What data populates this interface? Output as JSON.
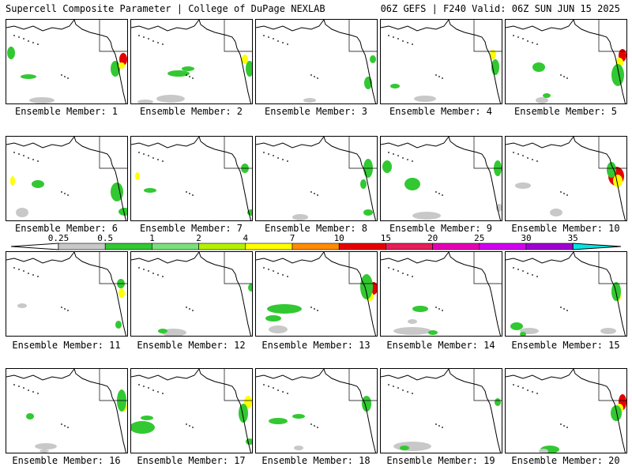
{
  "header": {
    "left_title": "Supercell Composite Parameter | College of DuPage NEXLAB",
    "right_title": "06Z GEFS | F240 Valid: 06Z SUN JUN 15 2025"
  },
  "panels": [
    {
      "label": "Ensemble Member: 1",
      "blobs": [
        [
          "gray",
          45,
          102,
          16,
          4
        ],
        [
          "green",
          28,
          72,
          10,
          3
        ],
        [
          "green",
          138,
          62,
          6,
          10
        ],
        [
          "red",
          148,
          50,
          5,
          8
        ],
        [
          "yellow",
          146,
          58,
          4,
          4
        ],
        [
          "green",
          6,
          42,
          5,
          8
        ]
      ]
    },
    {
      "label": "Ensemble Member: 2",
      "blobs": [
        [
          "green",
          60,
          68,
          14,
          4
        ],
        [
          "green",
          72,
          62,
          8,
          3
        ],
        [
          "gray",
          50,
          100,
          18,
          5
        ],
        [
          "gray",
          18,
          104,
          10,
          3
        ],
        [
          "yellow",
          144,
          50,
          4,
          6
        ],
        [
          "green",
          150,
          62,
          5,
          10
        ]
      ]
    },
    {
      "label": "Ensemble Member: 3",
      "blobs": [
        [
          "gray",
          68,
          102,
          8,
          3
        ],
        [
          "green",
          142,
          80,
          5,
          8
        ],
        [
          "green",
          148,
          50,
          4,
          5
        ]
      ]
    },
    {
      "label": "Ensemble Member: 4",
      "blobs": [
        [
          "gray",
          56,
          100,
          14,
          4
        ],
        [
          "green",
          18,
          84,
          6,
          3
        ],
        [
          "yellow",
          142,
          44,
          4,
          6
        ],
        [
          "green",
          145,
          60,
          5,
          10
        ]
      ]
    },
    {
      "label": "Ensemble Member: 5",
      "blobs": [
        [
          "green",
          42,
          60,
          8,
          6
        ],
        [
          "gray",
          46,
          102,
          8,
          4
        ],
        [
          "green",
          52,
          96,
          5,
          3
        ],
        [
          "red",
          148,
          45,
          5,
          8
        ],
        [
          "yellow",
          144,
          54,
          5,
          6
        ],
        [
          "green",
          142,
          70,
          8,
          14
        ]
      ]
    },
    {
      "label": "Ensemble Member: 6",
      "blobs": [
        [
          "green",
          40,
          60,
          8,
          5
        ],
        [
          "gray",
          20,
          96,
          8,
          6
        ],
        [
          "green",
          140,
          70,
          8,
          12
        ],
        [
          "green",
          150,
          95,
          8,
          5
        ],
        [
          "yellow",
          8,
          56,
          3,
          6
        ]
      ]
    },
    {
      "label": "Ensemble Member: 7",
      "blobs": [
        [
          "green",
          24,
          68,
          8,
          3
        ],
        [
          "green",
          144,
          40,
          5,
          6
        ],
        [
          "green",
          152,
          96,
          5,
          4
        ],
        [
          "yellow",
          8,
          50,
          3,
          5
        ]
      ]
    },
    {
      "label": "Ensemble Member: 8",
      "blobs": [
        [
          "green",
          142,
          40,
          6,
          12
        ],
        [
          "green",
          136,
          60,
          4,
          6
        ],
        [
          "gray",
          56,
          102,
          10,
          4
        ],
        [
          "green",
          142,
          96,
          6,
          4
        ]
      ]
    },
    {
      "label": "Ensemble Member: 9",
      "blobs": [
        [
          "green",
          40,
          60,
          10,
          8
        ],
        [
          "green",
          8,
          38,
          6,
          8
        ],
        [
          "gray",
          58,
          100,
          18,
          5
        ],
        [
          "green",
          148,
          40,
          5,
          10
        ],
        [
          "gray",
          150,
          90,
          4,
          5
        ]
      ]
    },
    {
      "label": "Ensemble Member: 10",
      "blobs": [
        [
          "red",
          140,
          50,
          10,
          12
        ],
        [
          "yellow",
          142,
          56,
          6,
          8
        ],
        [
          "green",
          134,
          42,
          6,
          10
        ],
        [
          "gray",
          22,
          62,
          10,
          4
        ],
        [
          "gray",
          64,
          96,
          8,
          5
        ]
      ]
    },
    {
      "label": "Ensemble Member: 11",
      "blobs": [
        [
          "yellow",
          146,
          52,
          4,
          6
        ],
        [
          "green",
          145,
          40,
          5,
          6
        ],
        [
          "green",
          142,
          92,
          4,
          5
        ],
        [
          "gray",
          20,
          68,
          6,
          3
        ]
      ]
    },
    {
      "label": "Ensemble Member: 12",
      "blobs": [
        [
          "gray",
          54,
          102,
          16,
          5
        ],
        [
          "green",
          40,
          100,
          6,
          3
        ],
        [
          "green",
          152,
          45,
          4,
          5
        ]
      ]
    },
    {
      "label": "Ensemble Member: 13",
      "blobs": [
        [
          "green",
          36,
          72,
          22,
          6
        ],
        [
          "green",
          22,
          84,
          10,
          4
        ],
        [
          "red",
          149,
          46,
          5,
          8
        ],
        [
          "yellow",
          144,
          56,
          5,
          6
        ],
        [
          "green",
          140,
          44,
          8,
          16
        ],
        [
          "gray",
          28,
          98,
          12,
          5
        ]
      ]
    },
    {
      "label": "Ensemble Member: 14",
      "blobs": [
        [
          "green",
          50,
          72,
          10,
          4
        ],
        [
          "gray",
          40,
          100,
          24,
          5
        ],
        [
          "green",
          66,
          102,
          6,
          3
        ],
        [
          "gray",
          40,
          88,
          6,
          3
        ]
      ]
    },
    {
      "label": "Ensemble Member: 15",
      "blobs": [
        [
          "green",
          14,
          94,
          8,
          5
        ],
        [
          "gray",
          30,
          100,
          12,
          4
        ],
        [
          "gray",
          130,
          100,
          10,
          4
        ],
        [
          "yellow",
          142,
          56,
          4,
          6
        ],
        [
          "green",
          140,
          50,
          6,
          12
        ],
        [
          "green",
          22,
          104,
          4,
          3
        ]
      ]
    },
    {
      "label": "Ensemble Member: 16",
      "blobs": [
        [
          "gray",
          50,
          98,
          14,
          4
        ],
        [
          "green",
          30,
          60,
          5,
          4
        ],
        [
          "yellow",
          148,
          48,
          5,
          6
        ],
        [
          "green",
          146,
          40,
          6,
          14
        ],
        [
          "gray",
          48,
          104,
          6,
          2
        ]
      ]
    },
    {
      "label": "Ensemble Member: 17",
      "blobs": [
        [
          "green",
          14,
          74,
          16,
          8
        ],
        [
          "green",
          20,
          62,
          8,
          3
        ],
        [
          "yellow",
          148,
          42,
          5,
          8
        ],
        [
          "green",
          142,
          56,
          6,
          12
        ],
        [
          "green",
          150,
          92,
          5,
          4
        ]
      ]
    },
    {
      "label": "Ensemble Member: 18",
      "blobs": [
        [
          "green",
          28,
          66,
          12,
          4
        ],
        [
          "green",
          54,
          60,
          8,
          3
        ],
        [
          "green",
          140,
          44,
          6,
          10
        ],
        [
          "gray",
          54,
          100,
          6,
          3
        ]
      ]
    },
    {
      "label": "Ensemble Member: 19",
      "blobs": [
        [
          "gray",
          40,
          98,
          24,
          6
        ],
        [
          "green",
          30,
          100,
          6,
          3
        ],
        [
          "green",
          148,
          42,
          4,
          5
        ]
      ]
    },
    {
      "label": "Ensemble Member: 20",
      "blobs": [
        [
          "red",
          148,
          42,
          5,
          10
        ],
        [
          "yellow",
          144,
          50,
          5,
          6
        ],
        [
          "green",
          140,
          56,
          7,
          10
        ],
        [
          "green",
          56,
          102,
          12,
          5
        ],
        [
          "gray",
          48,
          104,
          6,
          3
        ]
      ]
    }
  ],
  "colorbar": {
    "labels": [
      "0.25",
      "0.5",
      "1",
      "2",
      "4",
      "7",
      "10",
      "15",
      "20",
      "25",
      "30",
      "35"
    ],
    "colors": [
      "#c8c8c8",
      "#32c832",
      "#7be07b",
      "#b4f000",
      "#ffff00",
      "#ff8c00",
      "#e60000",
      "#e61e5a",
      "#e600b4",
      "#d200f0",
      "#a000d2",
      "#8c4bdc",
      "#00e6e6"
    ]
  },
  "colors": {
    "gray": "#c8c8c8",
    "green": "#32c832",
    "yellow": "#ffff00",
    "red": "#e60000",
    "orange": "#ff8c00"
  }
}
